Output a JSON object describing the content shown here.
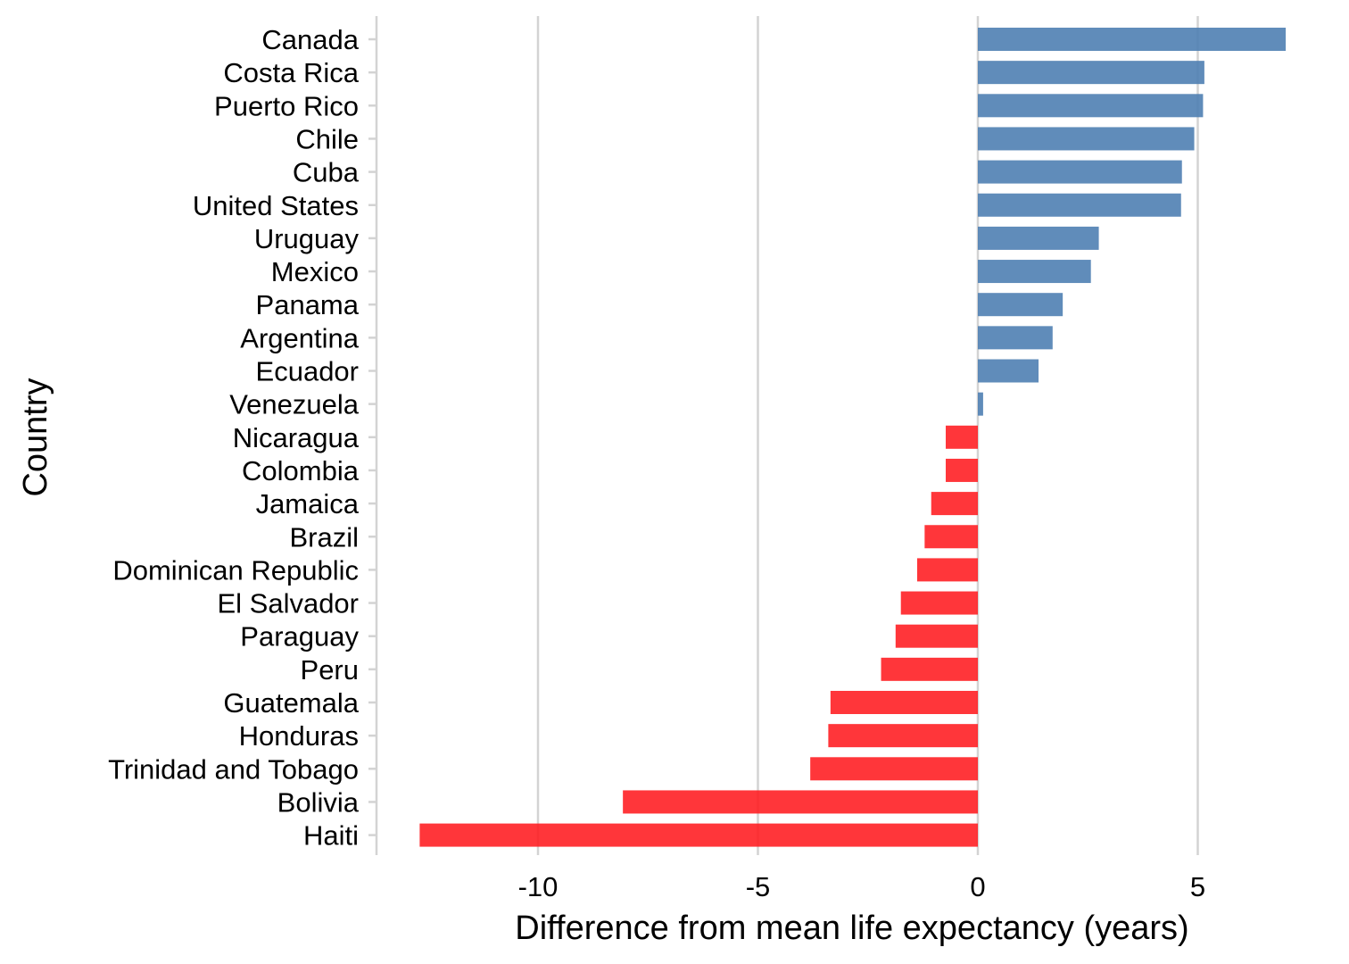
{
  "chart_data": {
    "type": "bar",
    "orientation": "horizontal",
    "title": "",
    "xlabel": "Difference from mean life expectancy (years)",
    "ylabel": "Country",
    "xlim": [
      -13.7,
      7.5
    ],
    "xticks": [
      -10,
      -5,
      0,
      5
    ],
    "xtick_labels": [
      "-10",
      "-5",
      "0",
      "5"
    ],
    "grid": "vertical major gridlines",
    "legend": "none",
    "colors": {
      "positive": "#4f7fb3",
      "negative": "#ff1a1f"
    },
    "categories": [
      "Canada",
      "Costa Rica",
      "Puerto Rico",
      "Chile",
      "Cuba",
      "United States",
      "Uruguay",
      "Mexico",
      "Panama",
      "Argentina",
      "Ecuador",
      "Venezuela",
      "Nicaragua",
      "Colombia",
      "Jamaica",
      "Brazil",
      "Dominican Republic",
      "El Salvador",
      "Paraguay",
      "Peru",
      "Guatemala",
      "Honduras",
      "Trinidad and Tobago",
      "Bolivia",
      "Haiti"
    ],
    "values": [
      7.0,
      5.15,
      5.12,
      4.92,
      4.64,
      4.62,
      2.75,
      2.57,
      1.93,
      1.7,
      1.38,
      0.12,
      -0.73,
      -0.73,
      -1.06,
      -1.21,
      -1.38,
      -1.75,
      -1.87,
      -2.2,
      -3.35,
      -3.4,
      -3.81,
      -8.07,
      -12.69
    ]
  }
}
